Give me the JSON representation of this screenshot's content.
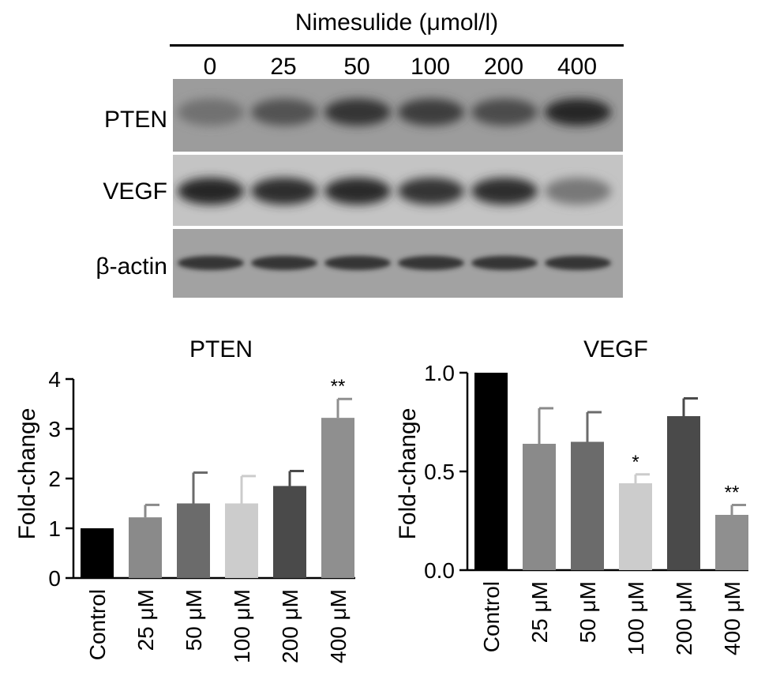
{
  "blot": {
    "title": "Nimesulide (μmol/l)",
    "lanes": [
      "0",
      "25",
      "50",
      "100",
      "200",
      "400"
    ],
    "rows": [
      {
        "label": "PTEN",
        "band_intensity": [
          0.45,
          0.65,
          0.85,
          0.8,
          0.7,
          0.95
        ]
      },
      {
        "label": "VEGF",
        "band_intensity": [
          0.95,
          0.9,
          0.92,
          0.85,
          0.9,
          0.4
        ]
      },
      {
        "label": "β-actin",
        "band_intensity": [
          0.85,
          0.85,
          0.85,
          0.85,
          0.85,
          0.85
        ]
      }
    ]
  },
  "chart_data": [
    {
      "type": "bar",
      "title": "PTEN",
      "ylabel": "Fold-change",
      "xlabel": "",
      "ylim": [
        0,
        4
      ],
      "yticks": [
        "0",
        "1",
        "2",
        "3",
        "4"
      ],
      "categories": [
        "Control",
        "25 μM",
        "50 μM",
        "100 μM",
        "200 μM",
        "400 μM"
      ],
      "values": [
        1.0,
        1.22,
        1.5,
        1.5,
        1.85,
        3.22
      ],
      "errors": [
        0.0,
        0.25,
        0.62,
        0.55,
        0.3,
        0.38
      ],
      "colors": [
        "#000000",
        "#8a8a8a",
        "#6b6b6b",
        "#cccccc",
        "#4a4a4a",
        "#8f8f8f"
      ],
      "annotations": [
        "",
        "",
        "",
        "",
        "",
        "**"
      ]
    },
    {
      "type": "bar",
      "title": "VEGF",
      "ylabel": "Fold-change",
      "xlabel": "",
      "ylim": [
        0,
        1.0
      ],
      "yticks": [
        "0.0",
        "0.5",
        "1.0"
      ],
      "categories": [
        "Control",
        "25 μM",
        "50 μM",
        "100 μM",
        "200 μM",
        "400 μM"
      ],
      "values": [
        1.0,
        0.64,
        0.65,
        0.44,
        0.78,
        0.28
      ],
      "errors": [
        0.0,
        0.18,
        0.15,
        0.045,
        0.09,
        0.05
      ],
      "colors": [
        "#000000",
        "#8a8a8a",
        "#6b6b6b",
        "#cccccc",
        "#4a4a4a",
        "#8f8f8f"
      ],
      "annotations": [
        "",
        "",
        "",
        "*",
        "",
        "**"
      ]
    }
  ]
}
